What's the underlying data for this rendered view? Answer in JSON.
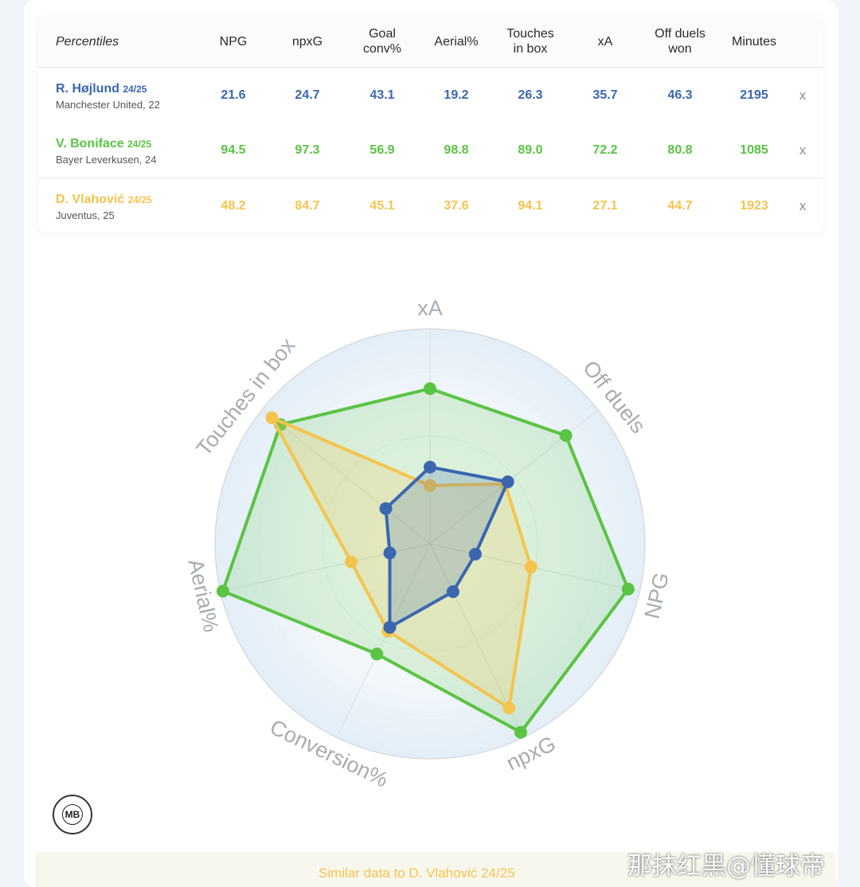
{
  "table": {
    "header_first": "Percentiles",
    "columns": [
      [
        "NPG"
      ],
      [
        "npxG"
      ],
      [
        "Goal",
        "conv%"
      ],
      [
        "Aerial%"
      ],
      [
        "Touches",
        "in box"
      ],
      [
        "xA"
      ],
      [
        "Off duels",
        "won"
      ],
      [
        "Minutes"
      ]
    ],
    "remove_label": "x",
    "players": [
      {
        "name": "R. Højlund",
        "season": "24/25",
        "club": "Manchester United, 22",
        "color": "#3a67b0",
        "values": [
          "21.6",
          "24.7",
          "43.1",
          "19.2",
          "26.3",
          "35.7",
          "46.3",
          "2195"
        ]
      },
      {
        "name": "V. Boniface",
        "season": "24/25",
        "club": "Bayer Leverkusen, 24",
        "color": "#5ac443",
        "values": [
          "94.5",
          "97.3",
          "56.9",
          "98.8",
          "89.0",
          "72.2",
          "80.8",
          "1085"
        ]
      },
      {
        "name": "D. Vlahović",
        "season": "24/25",
        "club": "Juventus, 25",
        "color": "#f4c44e",
        "values": [
          "48.2",
          "84.7",
          "45.1",
          "37.6",
          "94.1",
          "27.1",
          "44.7",
          "1923"
        ]
      }
    ]
  },
  "chart_data": {
    "type": "radar",
    "axes": [
      "xA",
      "Off duels",
      "NPG",
      "npxG",
      "Conversion%",
      "Aerial%",
      "Touches in box"
    ],
    "range": [
      0,
      100
    ],
    "series": [
      {
        "name": "R. Højlund 24/25",
        "color": "#3a67b0",
        "values": [
          35.7,
          46.3,
          21.6,
          24.7,
          43.1,
          19.2,
          26.3
        ]
      },
      {
        "name": "V. Boniface 24/25",
        "color": "#5ac443",
        "values": [
          72.2,
          80.8,
          94.5,
          97.3,
          56.9,
          98.8,
          89.0
        ]
      },
      {
        "name": "D. Vlahović 24/25",
        "color": "#f4c44e",
        "values": [
          27.1,
          44.7,
          48.2,
          84.7,
          45.1,
          37.6,
          94.1
        ]
      }
    ]
  },
  "logo_text": "MB",
  "footer": {
    "similar_text": "Similar data to D. Vlahović 24/25"
  },
  "watermark": "那抹红黑@懂球帝"
}
